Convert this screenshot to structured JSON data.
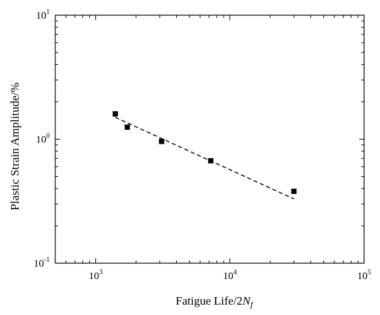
{
  "chart_data": {
    "type": "scatter",
    "xlabel": "Fatigue Life/2N_f",
    "xlabel_parts": {
      "main": "Fatigue Life/2",
      "italic": "N",
      "sub": "f"
    },
    "ylabel": "Plastic Strain Amplitude/%",
    "x_scale": "log",
    "y_scale": "log",
    "xlim": [
      500,
      100000
    ],
    "ylim": [
      0.1,
      10
    ],
    "x_ticks": [
      {
        "value": 1000,
        "base": "10",
        "exp": "3"
      },
      {
        "value": 10000,
        "base": "10",
        "exp": "4"
      },
      {
        "value": 100000,
        "base": "10",
        "exp": "5"
      }
    ],
    "y_ticks": [
      {
        "value": 0.1,
        "base": "10",
        "exp": "-1"
      },
      {
        "value": 1,
        "base": "10",
        "exp": "0"
      },
      {
        "value": 10,
        "base": "10",
        "exp": "1"
      }
    ],
    "series": [
      {
        "marker": "square",
        "color": "#000000",
        "points": [
          {
            "x": 1400,
            "y": 1.6
          },
          {
            "x": 1720,
            "y": 1.25
          },
          {
            "x": 3100,
            "y": 0.96
          },
          {
            "x": 7200,
            "y": 0.67
          },
          {
            "x": 30000,
            "y": 0.38
          }
        ]
      }
    ],
    "fit_line": {
      "style": "dashed",
      "color": "#000000",
      "points": [
        {
          "x": 1400,
          "y": 1.5
        },
        {
          "x": 30000,
          "y": 0.33
        }
      ]
    },
    "grid": false,
    "legend": "none"
  }
}
